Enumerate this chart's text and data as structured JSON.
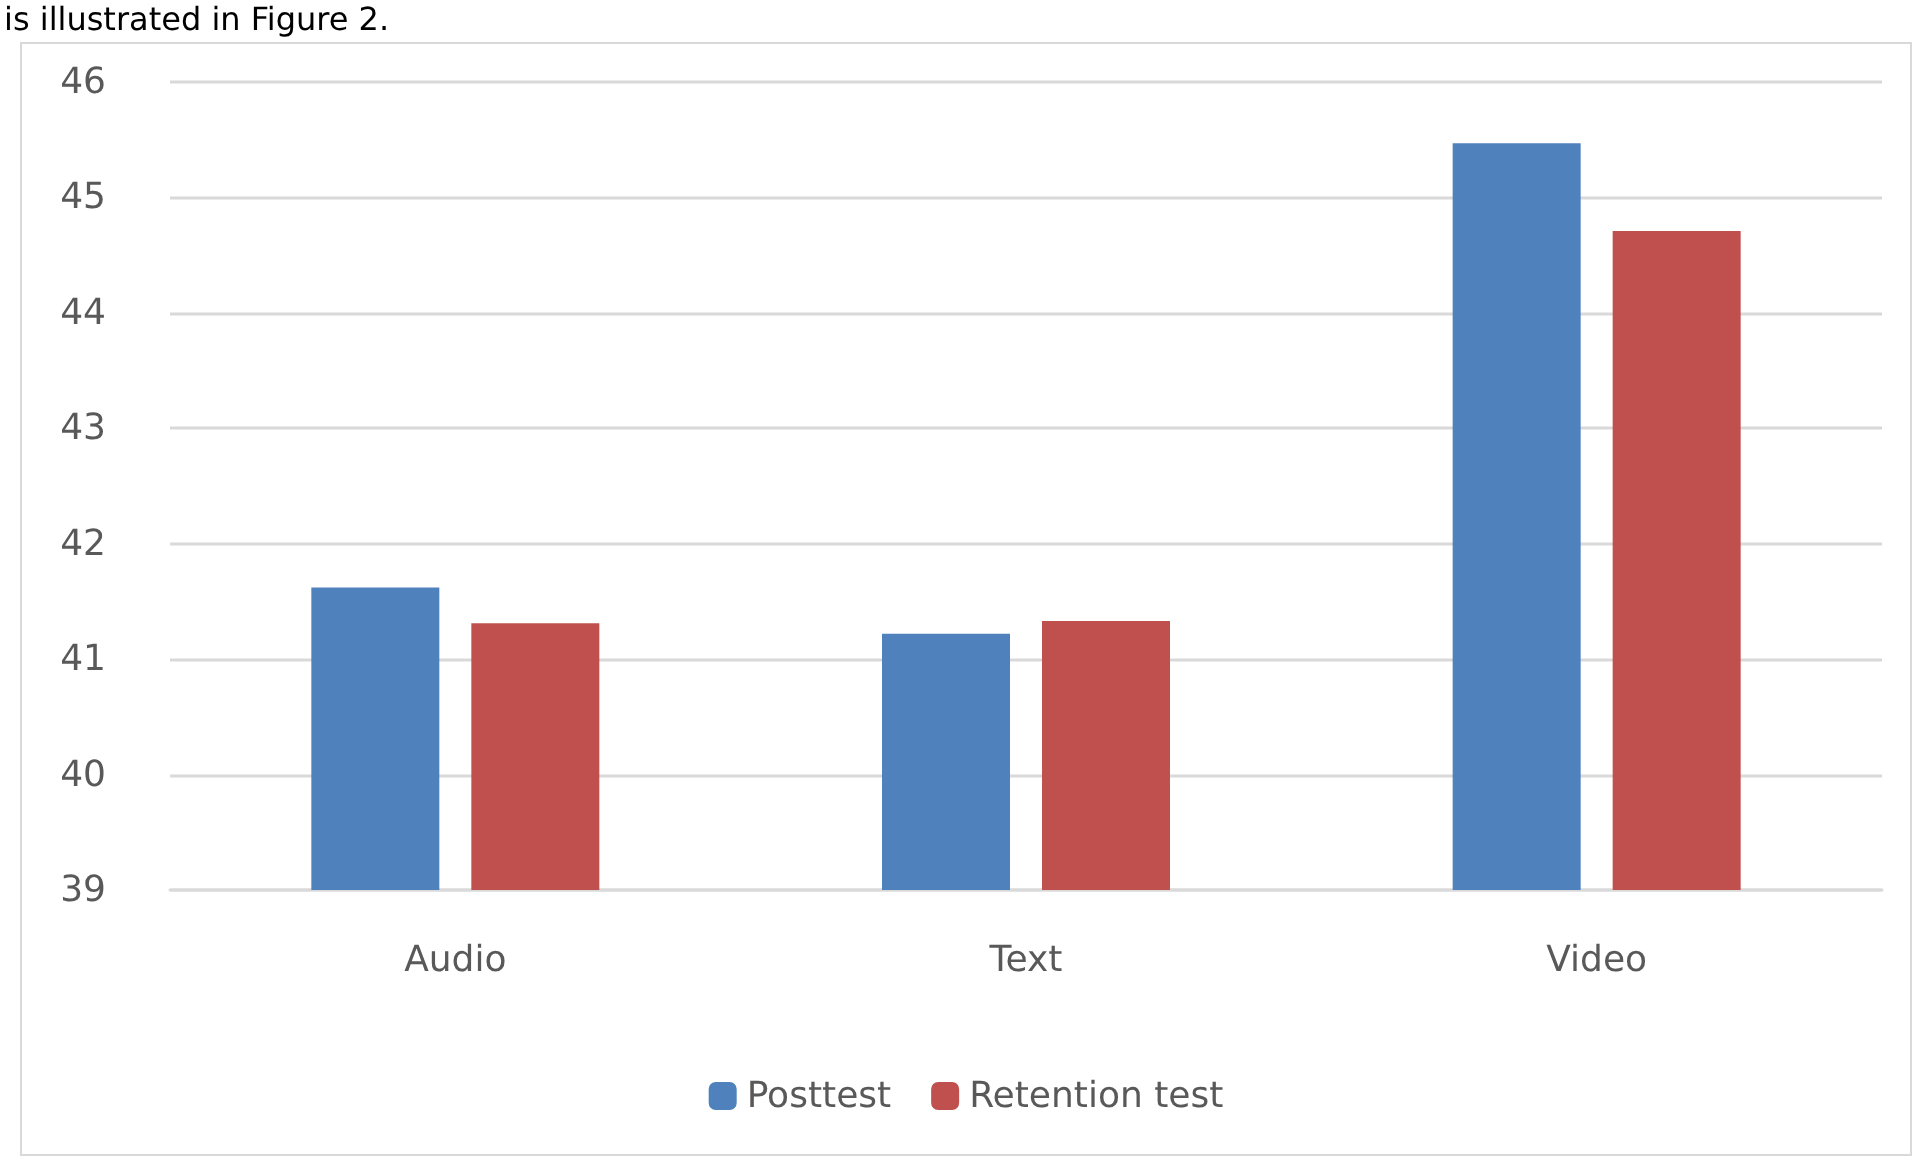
{
  "chart_data": {
    "type": "bar",
    "annotations": [
      "is illustrated in Figure 2."
    ],
    "categories": [
      "Audio",
      "Text",
      "Video"
    ],
    "series": [
      {
        "name": "Posttest",
        "color": "#4f81bd",
        "values": [
          41.62,
          41.22,
          45.47
        ]
      },
      {
        "name": "Retention test",
        "color": "#c0504d",
        "values": [
          41.31,
          41.33,
          44.71
        ]
      }
    ],
    "ylim": [
      39,
      46
    ],
    "yticks": [
      39,
      40,
      41,
      42,
      43,
      44,
      45,
      46
    ],
    "grid": "y",
    "legend": "bottom"
  }
}
